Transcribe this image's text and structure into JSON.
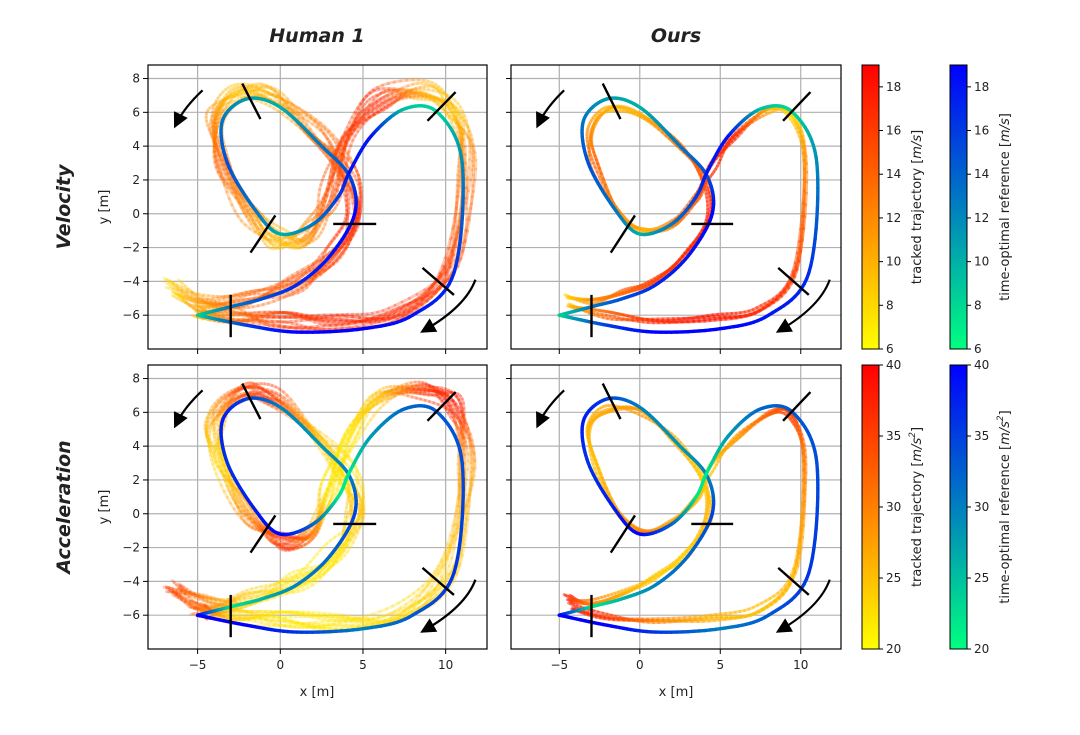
{
  "figure": {
    "column_titles": [
      "Human 1",
      "Ours"
    ],
    "row_titles": [
      "Velocity",
      "Acceleration"
    ],
    "xlabel": "x [m]",
    "ylabel": "y [m]",
    "x_ticks": [
      -5,
      0,
      5,
      10
    ],
    "y_ticks": [
      -6,
      -4,
      -2,
      0,
      2,
      4,
      6,
      8
    ],
    "colorbars": [
      {
        "label_parts": [
          "tracked trajectory [",
          "m/s",
          "]"
        ],
        "sup": "",
        "ticks": [
          6,
          8,
          10,
          12,
          14,
          16,
          18
        ],
        "range": [
          6,
          19
        ],
        "colormap": "autumn_r"
      },
      {
        "label_parts": [
          "time-optimal reference [",
          "m/s",
          "]"
        ],
        "sup": "",
        "ticks": [
          6,
          8,
          10,
          12,
          14,
          16,
          18
        ],
        "range": [
          6,
          19
        ],
        "colormap": "winter_r"
      },
      {
        "label_parts": [
          "tracked trajectory [",
          "m/s",
          "]"
        ],
        "sup": "2",
        "ticks": [
          20,
          25,
          30,
          35,
          40
        ],
        "range": [
          20,
          40
        ],
        "colormap": "autumn_r"
      },
      {
        "label_parts": [
          "time-optimal reference [",
          "m/s",
          "]"
        ],
        "sup": "2",
        "ticks": [
          20,
          25,
          30,
          35,
          40
        ],
        "range": [
          20,
          40
        ],
        "colormap": "winter_r"
      }
    ]
  },
  "chart_data": [
    {
      "type": "line",
      "panel": "Velocity / Human 1",
      "xlim": [
        -8,
        12.5
      ],
      "ylim": [
        -8,
        8.8
      ],
      "grid": true,
      "series": [
        {
          "role": "time-optimal reference",
          "colormap": "winter_r",
          "x": [
            -5,
            -3,
            -1,
            1,
            3,
            4.5,
            4.2,
            2.5,
            0,
            -2,
            -3.5,
            -3.2,
            -1.5,
            0,
            2,
            3.5,
            4.2,
            5.5,
            7.5,
            9.5,
            11,
            10.5,
            8,
            5,
            1,
            -2,
            -5
          ],
          "y": [
            -6,
            -5.5,
            -5,
            -4.2,
            -2.5,
            0,
            2.2,
            4,
            6.3,
            6.8,
            5.5,
            3,
            0.2,
            -1.2,
            -0.6,
            1,
            2.5,
            4.6,
            6.2,
            6,
            3,
            -3.5,
            -6,
            -6.8,
            -7,
            -6.6,
            -6
          ],
          "speed": [
            8,
            13,
            15,
            17,
            18,
            19,
            15,
            13,
            10,
            11,
            13,
            15,
            13,
            10,
            13,
            16,
            18,
            18,
            9,
            8,
            12,
            17,
            18,
            19,
            19,
            16,
            8
          ]
        },
        {
          "role": "tracked trajectory",
          "colormap": "autumn_r",
          "runs": 12,
          "x": [
            -6.5,
            -4.5,
            -2,
            1,
            3.2,
            4.5,
            4,
            2,
            -0.5,
            -2.5,
            -4,
            -3.5,
            -1.8,
            0,
            1.8,
            3,
            4,
            6,
            8.5,
            10.5,
            11.3,
            10.3,
            7,
            3.5,
            0,
            -3,
            -5
          ],
          "y": [
            -4.3,
            -5.3,
            -5,
            -4,
            -2.3,
            0,
            2.5,
            5,
            6.9,
            7.2,
            5.5,
            3,
            0,
            -1.6,
            -1,
            1.2,
            4.5,
            6.8,
            7.3,
            6.3,
            3,
            -3.2,
            -5.8,
            -6.4,
            -6.3,
            -6,
            -5.7
          ],
          "speed": [
            8,
            12,
            14,
            15,
            16,
            17,
            15,
            13,
            10,
            9,
            12,
            14,
            12,
            9,
            12,
            15,
            16,
            17,
            10,
            9,
            13,
            16,
            17,
            17,
            16,
            13,
            9
          ]
        }
      ],
      "markers": "gate bars and direction arrows"
    },
    {
      "type": "line",
      "panel": "Velocity / Ours",
      "xlim": [
        -8,
        12.5
      ],
      "ylim": [
        -8,
        8.8
      ],
      "grid": true,
      "series": [
        {
          "role": "time-optimal reference",
          "colormap": "winter_r",
          "x": [
            -5,
            -3,
            -1,
            1,
            3,
            4.5,
            4.2,
            2.5,
            0,
            -2,
            -3.5,
            -3.2,
            -1.5,
            0,
            2,
            3.5,
            4.2,
            5.5,
            7.5,
            9.5,
            11,
            10.5,
            8,
            5,
            1,
            -2,
            -5
          ],
          "y": [
            -6,
            -5.5,
            -5,
            -4.2,
            -2.5,
            0,
            2.2,
            4,
            6.3,
            6.8,
            5.5,
            3,
            0.2,
            -1.2,
            -0.6,
            1,
            2.5,
            4.6,
            6.2,
            6,
            3,
            -3.5,
            -6,
            -6.8,
            -7,
            -6.6,
            -6
          ],
          "speed": [
            8,
            13,
            15,
            17,
            18,
            19,
            15,
            13,
            10,
            11,
            13,
            15,
            13,
            10,
            13,
            16,
            18,
            18,
            9,
            8,
            12,
            17,
            18,
            19,
            19,
            16,
            8
          ]
        },
        {
          "role": "tracked trajectory",
          "colormap": "autumn_r",
          "runs": 4,
          "x": [
            -4.5,
            -3,
            -1,
            1,
            3,
            4.3,
            4,
            2.2,
            0,
            -2,
            -3.1,
            -2.8,
            -1.3,
            0.2,
            2,
            3.6,
            4.5,
            6,
            8,
            9.4,
            10.2,
            9.7,
            7.5,
            4.5,
            1,
            -2,
            -4.3
          ],
          "y": [
            -5,
            -5.2,
            -4.7,
            -3.8,
            -2.2,
            0,
            2.2,
            4.2,
            6,
            6.2,
            5,
            2.8,
            0,
            -1,
            -0.5,
            1.1,
            2.7,
            4.5,
            6,
            5.8,
            3,
            -3.3,
            -5.6,
            -6.2,
            -6.3,
            -6,
            -5.5
          ],
          "speed": [
            8,
            12,
            14,
            16,
            17,
            18,
            15,
            13,
            10,
            10,
            12,
            14,
            12,
            10,
            13,
            15,
            17,
            17,
            10,
            8,
            12,
            16,
            17,
            18,
            17,
            14,
            9
          ]
        }
      ],
      "markers": "gate bars and direction arrows"
    },
    {
      "type": "line",
      "panel": "Acceleration / Human 1",
      "xlim": [
        -8,
        12.5
      ],
      "ylim": [
        -8,
        8.8
      ],
      "grid": true,
      "series": [
        {
          "role": "time-optimal reference",
          "colormap": "winter_r",
          "x": [
            -5,
            -3,
            -1,
            1,
            3,
            4.5,
            4.2,
            2.5,
            0,
            -2,
            -3.5,
            -3.2,
            -1.5,
            0,
            2,
            3.5,
            4.2,
            5.5,
            7.5,
            9.5,
            11,
            10.5,
            8,
            5,
            1,
            -2,
            -5
          ],
          "y": [
            -6,
            -5.5,
            -5,
            -4.2,
            -2.5,
            0,
            2.2,
            4,
            6.3,
            6.8,
            5.5,
            3,
            0.2,
            -1.2,
            -0.6,
            1,
            2.5,
            4.6,
            6.2,
            6,
            3,
            -3.5,
            -6,
            -6.8,
            -7,
            -6.6,
            -6
          ],
          "acc": [
            40,
            22,
            26,
            30,
            32,
            35,
            30,
            28,
            30,
            35,
            38,
            36,
            38,
            40,
            32,
            22,
            22,
            28,
            32,
            33,
            34,
            36,
            33,
            30,
            36,
            40,
            40
          ]
        },
        {
          "role": "tracked trajectory",
          "colormap": "autumn_r",
          "runs": 12,
          "x": [
            -6.5,
            -4.5,
            -2,
            1,
            3.2,
            4.5,
            4,
            2,
            -0.5,
            -2.5,
            -4,
            -3.5,
            -1.8,
            0,
            1.8,
            3,
            4,
            6,
            8.5,
            10.5,
            11.3,
            10.3,
            7,
            3.5,
            0,
            -3,
            -5
          ],
          "y": [
            -4.3,
            -5.3,
            -5,
            -4,
            -2.3,
            0,
            2.5,
            5,
            6.9,
            7.2,
            5.5,
            3,
            0,
            -1.6,
            -1,
            1.2,
            4.5,
            6.8,
            7.3,
            6.3,
            3,
            -3.2,
            -5.8,
            -6.4,
            -6.3,
            -6,
            -5.7
          ],
          "acc": [
            35,
            30,
            24,
            22,
            22,
            25,
            22,
            26,
            36,
            34,
            26,
            23,
            30,
            37,
            30,
            22,
            22,
            25,
            36,
            38,
            28,
            24,
            23,
            22,
            22,
            24,
            36
          ]
        }
      ],
      "markers": "gate bars and direction arrows"
    },
    {
      "type": "line",
      "panel": "Acceleration / Ours",
      "xlim": [
        -8,
        12.5
      ],
      "ylim": [
        -8,
        8.8
      ],
      "grid": true,
      "series": [
        {
          "role": "time-optimal reference",
          "colormap": "winter_r",
          "x": [
            -5,
            -3,
            -1,
            1,
            3,
            4.5,
            4.2,
            2.5,
            0,
            -2,
            -3.5,
            -3.2,
            -1.5,
            0,
            2,
            3.5,
            4.2,
            5.5,
            7.5,
            9.5,
            11,
            10.5,
            8,
            5,
            1,
            -2,
            -5
          ],
          "y": [
            -6,
            -5.5,
            -5,
            -4.2,
            -2.5,
            0,
            2.2,
            4,
            6.3,
            6.8,
            5.5,
            3,
            0.2,
            -1.2,
            -0.6,
            1,
            2.5,
            4.6,
            6.2,
            6,
            3,
            -3.5,
            -6,
            -6.8,
            -7,
            -6.6,
            -6
          ],
          "acc": [
            40,
            22,
            26,
            30,
            32,
            35,
            30,
            28,
            30,
            35,
            38,
            36,
            38,
            40,
            32,
            22,
            22,
            28,
            32,
            33,
            34,
            36,
            33,
            30,
            36,
            40,
            40
          ]
        },
        {
          "role": "tracked trajectory",
          "colormap": "autumn_r",
          "runs": 4,
          "x": [
            -4.5,
            -3,
            -1,
            1,
            3,
            4.3,
            4,
            2.2,
            0,
            -2,
            -3.1,
            -2.8,
            -1.3,
            0.2,
            2,
            3.6,
            4.5,
            6,
            8,
            9.4,
            10.2,
            9.7,
            7.5,
            4.5,
            1,
            -2,
            -4.3
          ],
          "y": [
            -5,
            -5.2,
            -4.7,
            -3.8,
            -2.2,
            0,
            2.2,
            4.2,
            6,
            6.2,
            5,
            2.8,
            0,
            -1,
            -0.5,
            1.1,
            2.7,
            4.5,
            6,
            5.8,
            3,
            -3.3,
            -5.6,
            -6.2,
            -6.3,
            -6,
            -5.5
          ],
          "acc": [
            38,
            30,
            26,
            24,
            24,
            26,
            24,
            27,
            28,
            27,
            26,
            25,
            28,
            30,
            27,
            25,
            25,
            28,
            33,
            35,
            30,
            26,
            25,
            26,
            30,
            36,
            38
          ]
        }
      ],
      "markers": "gate bars and direction arrows"
    }
  ]
}
